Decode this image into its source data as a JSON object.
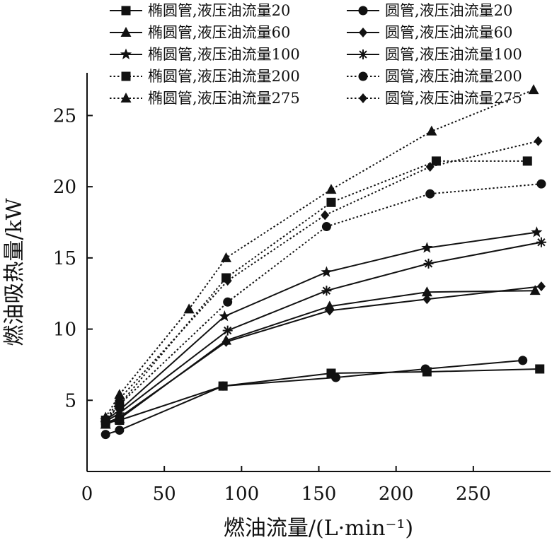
{
  "chart_data": {
    "type": "line",
    "title": "",
    "xlabel": "燃油流量/(L·min⁻¹)",
    "ylabel": "燃油吸热量/kW",
    "xlim": [
      0,
      300
    ],
    "ylim": [
      0,
      28
    ],
    "x_ticks": [
      0,
      50,
      100,
      150,
      200,
      250
    ],
    "y_ticks": [
      5,
      10,
      15,
      20,
      25
    ],
    "x_tick_labels": [
      "0",
      "50",
      "100",
      "150",
      "200",
      "250"
    ],
    "y_tick_labels": [
      "5",
      "10",
      "15",
      "20",
      "25"
    ],
    "grid": false,
    "legend_position": "top",
    "series": [
      {
        "name": "椭圆管,液压油流量20",
        "marker": "square",
        "dash": "solid",
        "x": [
          12,
          21,
          88,
          158,
          220,
          293
        ],
        "y": [
          3.4,
          3.6,
          6.0,
          6.9,
          7.0,
          7.2
        ]
      },
      {
        "name": "圆管,液压油流量20",
        "marker": "circle",
        "dash": "solid",
        "x": [
          12,
          21,
          88,
          161,
          219,
          282
        ],
        "y": [
          2.6,
          2.9,
          6.0,
          6.6,
          7.2,
          7.8
        ]
      },
      {
        "name": "椭圆管,液压油流量60",
        "marker": "triangle",
        "dash": "solid",
        "x": [
          12,
          21,
          90,
          157,
          220,
          290
        ],
        "y": [
          3.3,
          3.7,
          9.2,
          11.6,
          12.6,
          12.7
        ]
      },
      {
        "name": "圆管,液压油流量60",
        "marker": "diamond",
        "dash": "solid",
        "x": [
          12,
          21,
          90,
          157,
          220,
          294
        ],
        "y": [
          3.4,
          3.8,
          9.1,
          11.3,
          12.1,
          13.0
        ]
      },
      {
        "name": "椭圆管,液压油流量100",
        "marker": "star",
        "dash": "solid",
        "x": [
          12,
          21,
          89,
          155,
          220,
          291
        ],
        "y": [
          3.6,
          4.3,
          10.9,
          14.0,
          15.7,
          16.8
        ]
      },
      {
        "name": "圆管,液压油流量100",
        "marker": "asterisk",
        "dash": "solid",
        "x": [
          12,
          21,
          91,
          155,
          221,
          294
        ],
        "y": [
          3.5,
          4.1,
          9.9,
          12.7,
          14.6,
          16.1
        ]
      },
      {
        "name": "椭圆管,液压油流量200",
        "marker": "square",
        "dash": "dotted",
        "x": [
          12,
          21,
          90,
          158,
          226,
          285
        ],
        "y": [
          3.6,
          4.7,
          13.6,
          18.9,
          21.8,
          21.8
        ]
      },
      {
        "name": "圆管,液压油流量200",
        "marker": "circle",
        "dash": "dotted",
        "x": [
          12,
          21,
          91,
          155,
          222,
          294
        ],
        "y": [
          3.5,
          4.7,
          11.9,
          17.2,
          19.5,
          20.2
        ]
      },
      {
        "name": "椭圆管,液压油流量275",
        "marker": "triangle",
        "dash": "dotted",
        "x": [
          12,
          21,
          66,
          90,
          158,
          223,
          289
        ],
        "y": [
          3.8,
          5.4,
          11.4,
          15.0,
          19.8,
          23.9,
          26.8
        ]
      },
      {
        "name": "圆管,液压油流量275",
        "marker": "diamond",
        "dash": "dotted",
        "x": [
          12,
          21,
          91,
          154,
          222,
          292
        ],
        "y": [
          3.6,
          5.1,
          13.4,
          18.0,
          21.4,
          23.2
        ]
      }
    ]
  }
}
